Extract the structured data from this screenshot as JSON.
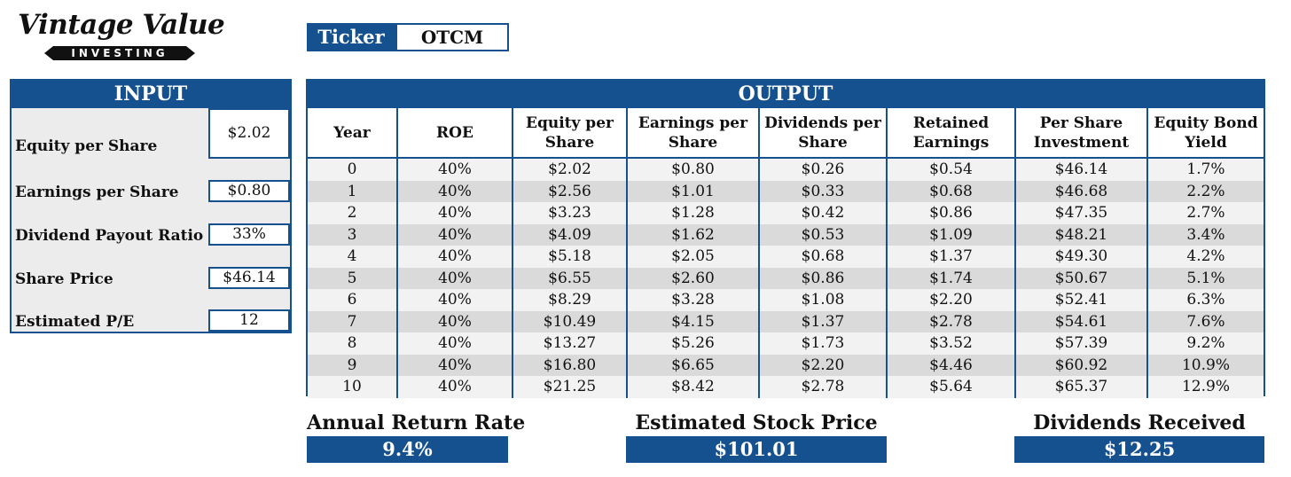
{
  "brand": {
    "name": "Vintage Value",
    "tagline": "INVESTING"
  },
  "ticker": {
    "label": "Ticker",
    "value": "OTCM"
  },
  "input": {
    "title": "INPUT",
    "fields": [
      {
        "label": "Equity per Share",
        "value": "$2.02"
      },
      {
        "label": "Earnings per Share",
        "value": "$0.80"
      },
      {
        "label": "Dividend Payout Ratio",
        "value": "33%"
      },
      {
        "label": "Share Price",
        "value": "$46.14"
      },
      {
        "label": "Estimated P/E",
        "value": "12"
      }
    ]
  },
  "output": {
    "title": "OUTPUT",
    "columns": [
      {
        "line1": "Year",
        "line2": ""
      },
      {
        "line1": "ROE",
        "line2": ""
      },
      {
        "line1": "Equity per",
        "line2": "Share"
      },
      {
        "line1": "Earnings per",
        "line2": "Share"
      },
      {
        "line1": "Dividends per",
        "line2": "Share"
      },
      {
        "line1": "Retained",
        "line2": "Earnings"
      },
      {
        "line1": "Per Share",
        "line2": "Investment"
      },
      {
        "line1": "Equity Bond",
        "line2": "Yield"
      }
    ],
    "rows": [
      [
        "0",
        "40%",
        "$2.02",
        "$0.80",
        "$0.26",
        "$0.54",
        "$46.14",
        "1.7%"
      ],
      [
        "1",
        "40%",
        "$2.56",
        "$1.01",
        "$0.33",
        "$0.68",
        "$46.68",
        "2.2%"
      ],
      [
        "2",
        "40%",
        "$3.23",
        "$1.28",
        "$0.42",
        "$0.86",
        "$47.35",
        "2.7%"
      ],
      [
        "3",
        "40%",
        "$4.09",
        "$1.62",
        "$0.53",
        "$1.09",
        "$48.21",
        "3.4%"
      ],
      [
        "4",
        "40%",
        "$5.18",
        "$2.05",
        "$0.68",
        "$1.37",
        "$49.30",
        "4.2%"
      ],
      [
        "5",
        "40%",
        "$6.55",
        "$2.60",
        "$0.86",
        "$1.74",
        "$50.67",
        "5.1%"
      ],
      [
        "6",
        "40%",
        "$8.29",
        "$3.28",
        "$1.08",
        "$2.20",
        "$52.41",
        "6.3%"
      ],
      [
        "7",
        "40%",
        "$10.49",
        "$4.15",
        "$1.37",
        "$2.78",
        "$54.61",
        "7.6%"
      ],
      [
        "8",
        "40%",
        "$13.27",
        "$5.26",
        "$1.73",
        "$3.52",
        "$57.39",
        "9.2%"
      ],
      [
        "9",
        "40%",
        "$16.80",
        "$6.65",
        "$2.20",
        "$4.46",
        "$60.92",
        "10.9%"
      ],
      [
        "10",
        "40%",
        "$21.25",
        "$8.42",
        "$2.78",
        "$5.64",
        "$65.37",
        "12.9%"
      ]
    ]
  },
  "summary": {
    "annual_return": {
      "label": "Annual Return Rate",
      "value": "9.4%"
    },
    "estimated_price": {
      "label": "Estimated Stock Price",
      "value": "$101.01"
    },
    "dividends": {
      "label": "Dividends Received",
      "value": "$12.25"
    }
  },
  "colors": {
    "accent": "#15508f",
    "row_light": "#f2f2f2",
    "row_dark": "#dadada",
    "input_bg": "#ececec"
  }
}
